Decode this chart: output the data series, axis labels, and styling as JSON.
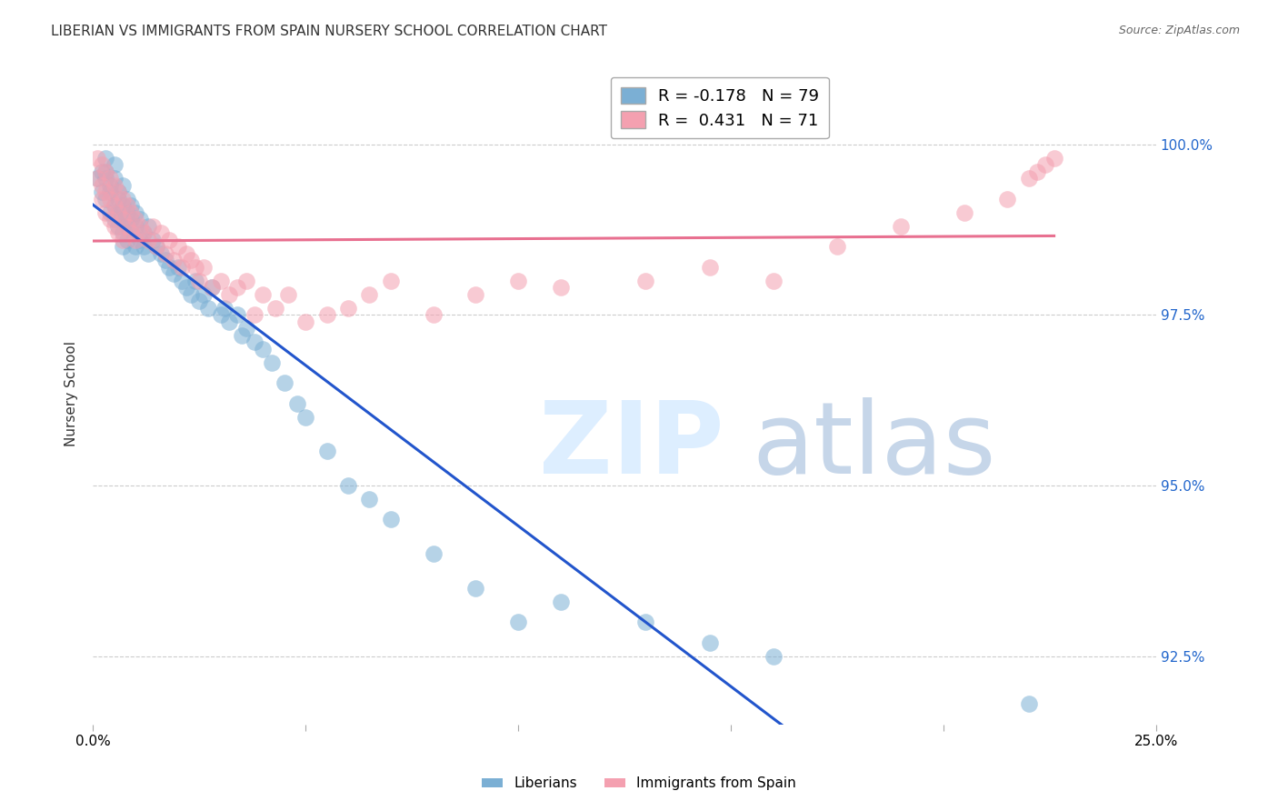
{
  "title": "LIBERIAN VS IMMIGRANTS FROM SPAIN NURSERY SCHOOL CORRELATION CHART",
  "source": "Source: ZipAtlas.com",
  "ylabel": "Nursery School",
  "yticks": [
    92.5,
    95.0,
    97.5,
    100.0
  ],
  "xlim": [
    0.0,
    0.25
  ],
  "ylim": [
    91.5,
    101.2
  ],
  "liberian_R": -0.178,
  "liberian_N": 79,
  "spain_R": 0.431,
  "spain_N": 71,
  "liberian_color": "#7bafd4",
  "spain_color": "#f4a0b0",
  "liberian_line_color": "#2255cc",
  "spain_line_color": "#e87090",
  "liberian_x": [
    0.001,
    0.002,
    0.002,
    0.003,
    0.003,
    0.003,
    0.003,
    0.004,
    0.004,
    0.004,
    0.005,
    0.005,
    0.005,
    0.005,
    0.006,
    0.006,
    0.006,
    0.006,
    0.007,
    0.007,
    0.007,
    0.007,
    0.007,
    0.008,
    0.008,
    0.008,
    0.008,
    0.009,
    0.009,
    0.009,
    0.009,
    0.01,
    0.01,
    0.01,
    0.011,
    0.011,
    0.012,
    0.012,
    0.013,
    0.013,
    0.014,
    0.015,
    0.016,
    0.017,
    0.018,
    0.019,
    0.02,
    0.021,
    0.022,
    0.023,
    0.024,
    0.025,
    0.026,
    0.027,
    0.028,
    0.03,
    0.031,
    0.032,
    0.034,
    0.035,
    0.036,
    0.038,
    0.04,
    0.042,
    0.045,
    0.048,
    0.05,
    0.055,
    0.06,
    0.065,
    0.07,
    0.08,
    0.09,
    0.1,
    0.11,
    0.13,
    0.145,
    0.16,
    0.22
  ],
  "liberian_y": [
    99.5,
    99.6,
    99.3,
    99.5,
    99.2,
    99.6,
    99.8,
    99.4,
    99.3,
    99.0,
    99.7,
    99.5,
    99.1,
    98.9,
    99.3,
    99.2,
    99.0,
    98.8,
    99.4,
    99.1,
    98.9,
    98.7,
    98.5,
    99.2,
    99.0,
    98.8,
    98.6,
    99.1,
    98.9,
    98.7,
    98.4,
    99.0,
    98.8,
    98.5,
    98.9,
    98.6,
    98.7,
    98.5,
    98.8,
    98.4,
    98.6,
    98.5,
    98.4,
    98.3,
    98.2,
    98.1,
    98.2,
    98.0,
    97.9,
    97.8,
    98.0,
    97.7,
    97.8,
    97.6,
    97.9,
    97.5,
    97.6,
    97.4,
    97.5,
    97.2,
    97.3,
    97.1,
    97.0,
    96.8,
    96.5,
    96.2,
    96.0,
    95.5,
    95.0,
    94.8,
    94.5,
    94.0,
    93.5,
    93.0,
    93.3,
    93.0,
    92.7,
    92.5,
    91.8
  ],
  "spain_x": [
    0.001,
    0.001,
    0.002,
    0.002,
    0.002,
    0.003,
    0.003,
    0.003,
    0.004,
    0.004,
    0.004,
    0.005,
    0.005,
    0.005,
    0.006,
    0.006,
    0.006,
    0.007,
    0.007,
    0.007,
    0.008,
    0.008,
    0.009,
    0.009,
    0.01,
    0.01,
    0.011,
    0.012,
    0.013,
    0.014,
    0.015,
    0.016,
    0.017,
    0.018,
    0.019,
    0.02,
    0.021,
    0.022,
    0.023,
    0.024,
    0.025,
    0.026,
    0.028,
    0.03,
    0.032,
    0.034,
    0.036,
    0.038,
    0.04,
    0.043,
    0.046,
    0.05,
    0.055,
    0.06,
    0.065,
    0.07,
    0.08,
    0.09,
    0.1,
    0.11,
    0.13,
    0.145,
    0.16,
    0.175,
    0.19,
    0.205,
    0.215,
    0.22,
    0.222,
    0.224,
    0.226
  ],
  "spain_y": [
    99.8,
    99.5,
    99.7,
    99.4,
    99.2,
    99.6,
    99.3,
    99.0,
    99.5,
    99.2,
    98.9,
    99.4,
    99.1,
    98.8,
    99.3,
    99.0,
    98.7,
    99.2,
    98.9,
    98.6,
    99.1,
    98.8,
    99.0,
    98.7,
    98.9,
    98.6,
    98.8,
    98.7,
    98.6,
    98.8,
    98.5,
    98.7,
    98.4,
    98.6,
    98.3,
    98.5,
    98.2,
    98.4,
    98.3,
    98.2,
    98.0,
    98.2,
    97.9,
    98.0,
    97.8,
    97.9,
    98.0,
    97.5,
    97.8,
    97.6,
    97.8,
    97.4,
    97.5,
    97.6,
    97.8,
    98.0,
    97.5,
    97.8,
    98.0,
    97.9,
    98.0,
    98.2,
    98.0,
    98.5,
    98.8,
    99.0,
    99.2,
    99.5,
    99.6,
    99.7,
    99.8
  ]
}
